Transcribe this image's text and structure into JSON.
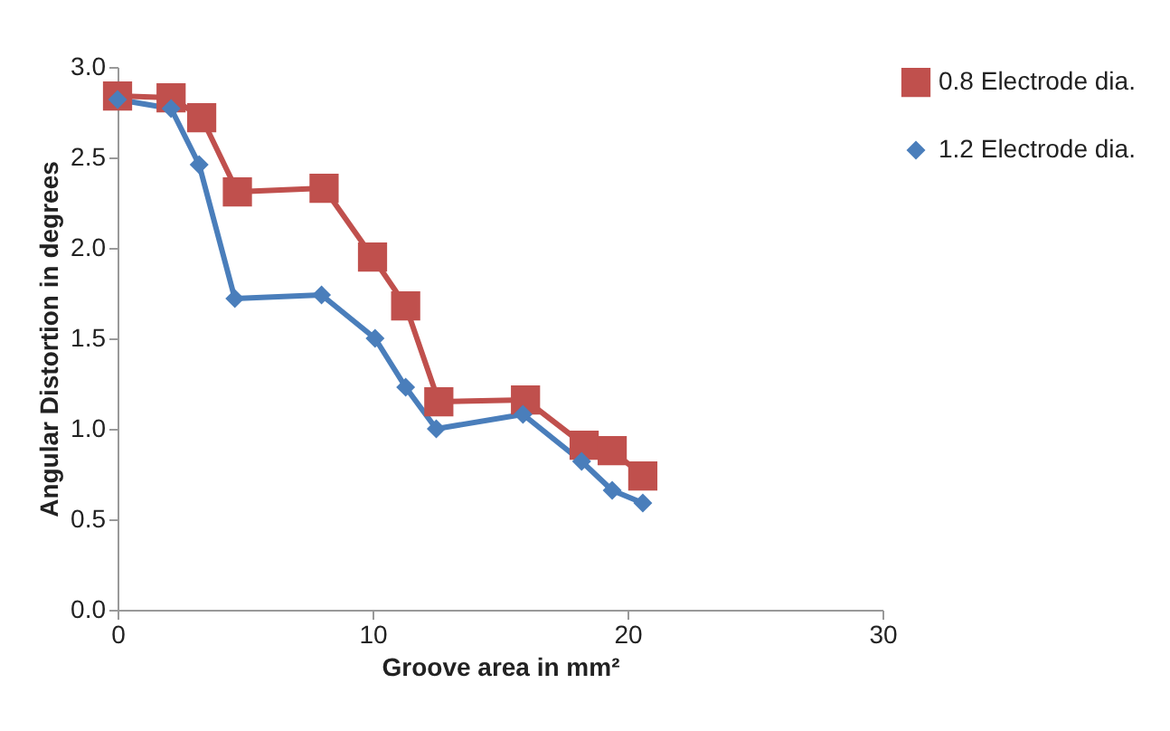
{
  "chart_data": {
    "type": "line",
    "xlabel": "Groove area in mm²",
    "ylabel": "Angular Distortion in degrees",
    "xlim": [
      0,
      30
    ],
    "xticks": [
      0,
      10,
      20,
      30
    ],
    "ylim": [
      0,
      3
    ],
    "yticks": [
      {
        "value": 0,
        "label": "0.0"
      },
      {
        "value": 0.5,
        "label": "0.5"
      },
      {
        "value": 1,
        "label": "1.0"
      },
      {
        "value": 1.5,
        "label": "1.5"
      },
      {
        "value": 2,
        "label": "2.0"
      },
      {
        "value": 2.5,
        "label": "2.5"
      },
      {
        "value": 3,
        "label": "3.0"
      }
    ],
    "grid": false,
    "legend": "top right",
    "line_style": "solid",
    "series": [
      {
        "name": "0.8 Electrode dia.",
        "color": "#c0504d",
        "marker": "square",
        "x": [
          0,
          2.1,
          3.3,
          4.7,
          8.1,
          10.0,
          11.3,
          12.6,
          16.0,
          18.3,
          19.4,
          20.6
        ],
        "values": [
          2.84,
          2.83,
          2.72,
          2.31,
          2.33,
          1.95,
          1.68,
          1.15,
          1.16,
          0.91,
          0.88,
          0.74
        ]
      },
      {
        "name": "1.2 Electrode dia.",
        "color": "#4a7ebb",
        "marker": "diamond",
        "x": [
          0,
          2.1,
          3.2,
          4.6,
          8.0,
          10.1,
          11.3,
          12.5,
          15.9,
          18.2,
          19.4,
          20.6
        ],
        "values": [
          2.82,
          2.77,
          2.46,
          1.72,
          1.74,
          1.5,
          1.23,
          1.0,
          1.08,
          0.82,
          0.66,
          0.59
        ]
      }
    ]
  }
}
